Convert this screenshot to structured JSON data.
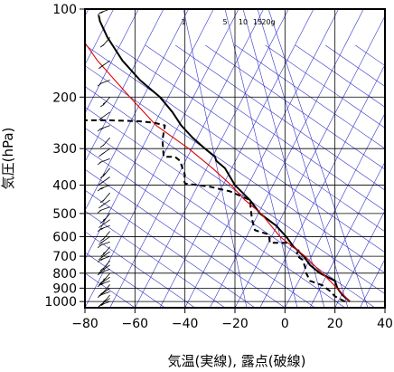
{
  "chart_data": {
    "type": "line",
    "chart_kind": "skew-T log-P thermodynamic diagram",
    "title": "",
    "xlabel": "気温(実線), 露点(破線)",
    "ylabel": "気圧(hPa)",
    "xlim": [
      -80,
      40
    ],
    "ylim": [
      1050,
      100
    ],
    "y_scale": "log",
    "x_ticks": [
      -80,
      -60,
      -40,
      -20,
      0,
      20,
      40
    ],
    "x_tick_labels": [
      "−80",
      "−60",
      "−40",
      "−20",
      "0",
      "20",
      "40"
    ],
    "y_ticks": [
      100,
      200,
      300,
      400,
      500,
      600,
      700,
      800,
      900,
      1000
    ],
    "y_tick_labels": [
      "100",
      "200",
      "300",
      "400",
      "500",
      "600",
      "700",
      "800",
      "900",
      "1000"
    ],
    "grid": true,
    "mixing_ratio_labels": [
      "1",
      "5",
      "10",
      "15",
      "20g"
    ],
    "colors": {
      "temperature": "#000000",
      "dewpoint": "#000000",
      "parcel": "#e00000",
      "background_lines": "#3333cc",
      "grid": "#000000"
    },
    "series": [
      {
        "line_style": "solid",
        "color": "#000000",
        "points": [
          [
            26.0,
            1000
          ],
          [
            23.0,
            950
          ],
          [
            21.0,
            900
          ],
          [
            20.0,
            850
          ],
          [
            14.0,
            800
          ],
          [
            10.0,
            750
          ],
          [
            7.5,
            700
          ],
          [
            3.5,
            650
          ],
          [
            0.5,
            600
          ],
          [
            -3.5,
            550
          ],
          [
            -10.0,
            500
          ],
          [
            -14.0,
            450
          ],
          [
            -20.0,
            400
          ],
          [
            -24.0,
            350
          ],
          [
            -27.5,
            330
          ],
          [
            -28.0,
            320
          ],
          [
            -32.0,
            300
          ],
          [
            -37.0,
            275
          ],
          [
            -41.5,
            250
          ],
          [
            -45.0,
            225
          ],
          [
            -50.0,
            200
          ],
          [
            -58.0,
            175
          ],
          [
            -65.0,
            150
          ],
          [
            -71.0,
            125
          ],
          [
            -74.0,
            110
          ],
          [
            -74.5,
            105
          ]
        ]
      },
      {
        "line_style": "dashed",
        "color": "#000000",
        "points": [
          [
            24.0,
            1000
          ],
          [
            22.0,
            980
          ],
          [
            20.0,
            960
          ],
          [
            19.0,
            940
          ],
          [
            18.0,
            920
          ],
          [
            16.5,
            900
          ],
          [
            15.0,
            880
          ],
          [
            10.0,
            850
          ],
          [
            8.5,
            800
          ],
          [
            8.0,
            760
          ],
          [
            7.0,
            720
          ],
          [
            5.0,
            700
          ],
          [
            4.5,
            690
          ],
          [
            5.5,
            670
          ],
          [
            1.0,
            630
          ],
          [
            -6.0,
            630
          ],
          [
            -6.5,
            590
          ],
          [
            -12.0,
            570
          ],
          [
            -13.0,
            530
          ],
          [
            -13.5,
            500
          ],
          [
            -14.0,
            450
          ],
          [
            -22.0,
            420
          ],
          [
            -30.0,
            405
          ],
          [
            -40.0,
            395
          ],
          [
            -40.5,
            380
          ],
          [
            -40.0,
            370
          ],
          [
            -42.0,
            330
          ],
          [
            -44.0,
            320
          ],
          [
            -48.5,
            320
          ],
          [
            -49.0,
            280
          ],
          [
            -48.0,
            250
          ],
          [
            -52.0,
            245
          ],
          [
            -58.0,
            242
          ],
          [
            -70.0,
            240
          ],
          [
            -75.0,
            240
          ],
          [
            -80.0,
            240
          ]
        ]
      },
      {
        "line_style": "solid",
        "color": "#e00000",
        "points": [
          [
            26.0,
            1000
          ],
          [
            18.0,
            850
          ],
          [
            8.0,
            700
          ],
          [
            -2.0,
            600
          ],
          [
            -9.5,
            500
          ],
          [
            -16.0,
            450
          ],
          [
            -21.5,
            400
          ],
          [
            -29.0,
            350
          ],
          [
            -38.5,
            300
          ],
          [
            -51.5,
            250
          ],
          [
            -62.0,
            200
          ],
          [
            -75.0,
            150
          ],
          [
            -83.0,
            120
          ],
          [
            -86.0,
            110
          ]
        ]
      }
    ],
    "wind_barbs": {
      "x_position_degC": -70,
      "pressures": [
        1000,
        975,
        950,
        925,
        900,
        875,
        850,
        825,
        800,
        775,
        750,
        725,
        700,
        675,
        650,
        625,
        600,
        575,
        550,
        525,
        500,
        475,
        450,
        425,
        400,
        375,
        350,
        325,
        300,
        275,
        250,
        225,
        200,
        175,
        150,
        125,
        100
      ]
    }
  }
}
